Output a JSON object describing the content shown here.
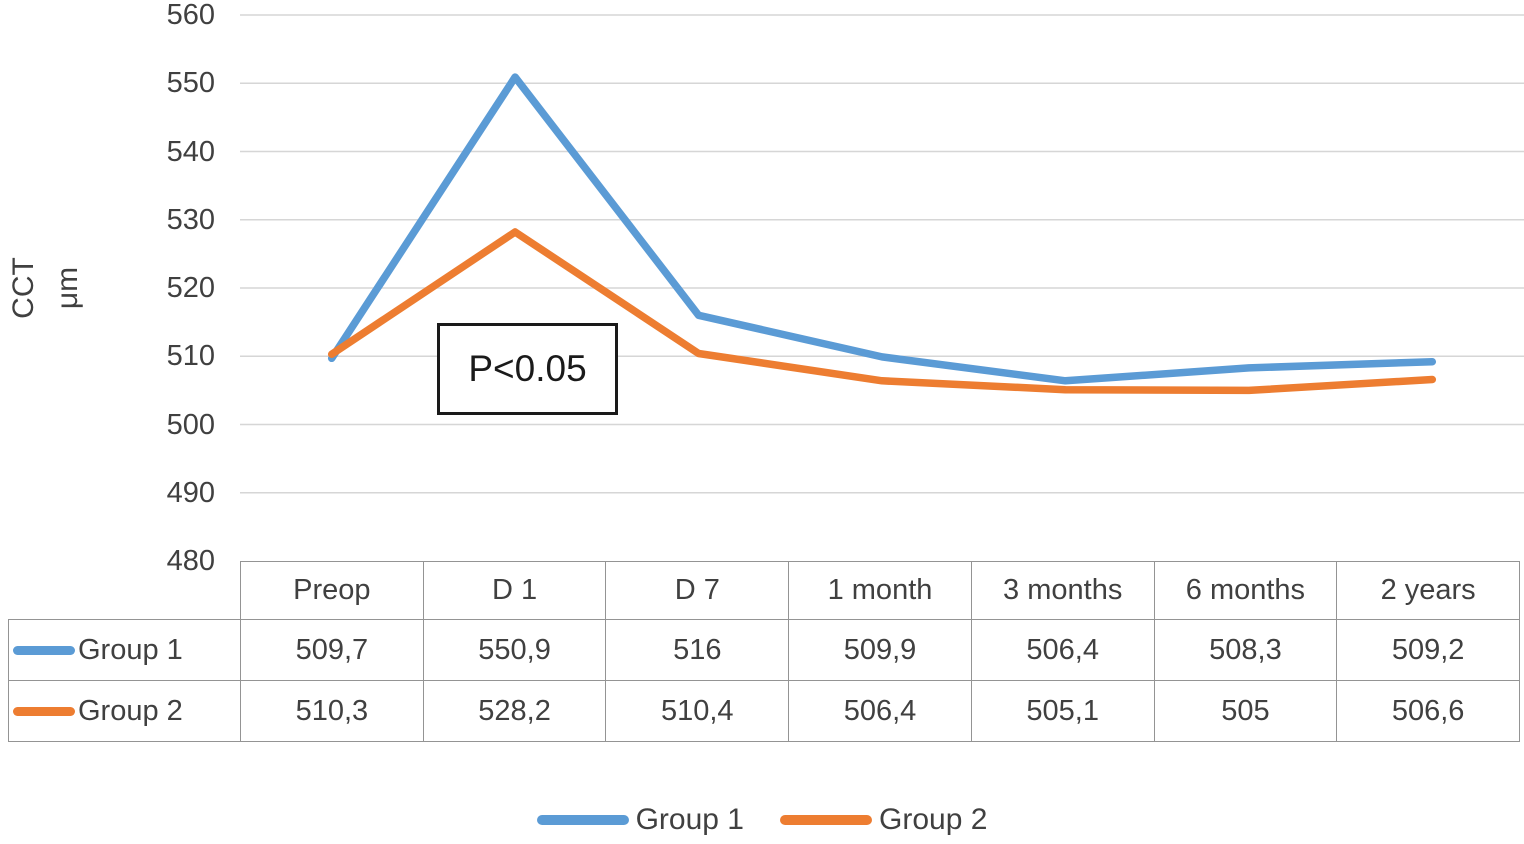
{
  "chart_data": {
    "type": "line",
    "title": "",
    "ylabel_lines": [
      "CCT",
      "μm"
    ],
    "xlabel": "",
    "categories": [
      "Preop",
      "D 1",
      "D 7",
      "1 month",
      "3 months",
      "6 months",
      "2 years"
    ],
    "series": [
      {
        "name": "Group 1",
        "color": "#5B9BD5",
        "values": [
          509.7,
          550.9,
          516,
          509.9,
          506.4,
          508.3,
          509.2
        ],
        "display": [
          "509,7",
          "550,9",
          "516",
          "509,9",
          "506,4",
          "508,3",
          "509,2"
        ]
      },
      {
        "name": "Group 2",
        "color": "#ED7D31",
        "values": [
          510.3,
          528.2,
          510.4,
          506.4,
          505.1,
          505,
          506.6
        ],
        "display": [
          "510,3",
          "528,2",
          "510,4",
          "506,4",
          "505,1",
          "505",
          "506,6"
        ]
      }
    ],
    "ylim": [
      480,
      560
    ],
    "ytick_step": 10,
    "yticks": [
      "560",
      "550",
      "540",
      "530",
      "520",
      "510",
      "500",
      "490",
      "480"
    ],
    "annotation": "P<0.05",
    "grid": "horizontal",
    "gridline_color": "#d6d6d6",
    "table_border_color": "#949494",
    "legend_position": "bottom",
    "legend": [
      "Group 1",
      "Group 2"
    ]
  }
}
